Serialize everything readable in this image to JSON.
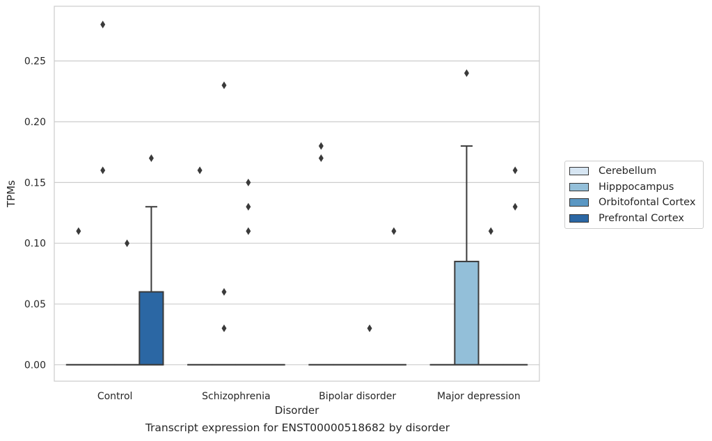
{
  "chart_data": {
    "type": "box",
    "categories": [
      "Control",
      "Schizophrenia",
      "Bipolar disorder",
      "Major depression"
    ],
    "xlabel": "Disorder",
    "ylabel": "TPMs",
    "caption": "Transcript expression for ENST00000518682 by disorder",
    "ylim": [
      -0.0135,
      0.295
    ],
    "yticks": [
      "0.00",
      "0.05",
      "0.10",
      "0.15",
      "0.20",
      "0.25"
    ],
    "grid": true,
    "legend_position": "right",
    "series": [
      {
        "name": "Cerebellum",
        "color": "#d6e5f2"
      },
      {
        "name": "Hipppocampus",
        "color": "#93bfd9"
      },
      {
        "name": "Orbitofontal Cortex",
        "color": "#5a97c3"
      },
      {
        "name": "Prefrontal Cortex",
        "color": "#2b67a4"
      }
    ],
    "boxes": [
      {
        "category": "Control",
        "series": "Cerebellum",
        "q1": 0,
        "median": 0,
        "q3": 0,
        "whisker_low": 0,
        "whisker_high": 0,
        "outliers": [
          0.11
        ]
      },
      {
        "category": "Control",
        "series": "Hipppocampus",
        "q1": 0,
        "median": 0,
        "q3": 0,
        "whisker_low": 0,
        "whisker_high": 0,
        "outliers": [
          0.28,
          0.16
        ]
      },
      {
        "category": "Control",
        "series": "Orbitofontal Cortex",
        "q1": 0,
        "median": 0,
        "q3": 0,
        "whisker_low": 0,
        "whisker_high": 0,
        "outliers": [
          0.1
        ]
      },
      {
        "category": "Control",
        "series": "Prefrontal Cortex",
        "q1": 0,
        "median": 0,
        "q3": 0.06,
        "whisker_low": 0,
        "whisker_high": 0.13,
        "outliers": [
          0.17
        ]
      },
      {
        "category": "Schizophrenia",
        "series": "Cerebellum",
        "q1": 0,
        "median": 0,
        "q3": 0,
        "whisker_low": 0,
        "whisker_high": 0,
        "outliers": [
          0.16
        ]
      },
      {
        "category": "Schizophrenia",
        "series": "Hipppocampus",
        "q1": 0,
        "median": 0,
        "q3": 0,
        "whisker_low": 0,
        "whisker_high": 0,
        "outliers": [
          0.23,
          0.06,
          0.03
        ]
      },
      {
        "category": "Schizophrenia",
        "series": "Orbitofontal Cortex",
        "q1": 0,
        "median": 0,
        "q3": 0,
        "whisker_low": 0,
        "whisker_high": 0,
        "outliers": [
          0.15,
          0.13,
          0.11
        ]
      },
      {
        "category": "Schizophrenia",
        "series": "Prefrontal Cortex",
        "q1": 0,
        "median": 0,
        "q3": 0,
        "whisker_low": 0,
        "whisker_high": 0,
        "outliers": []
      },
      {
        "category": "Bipolar disorder",
        "series": "Cerebellum",
        "q1": 0,
        "median": 0,
        "q3": 0,
        "whisker_low": 0,
        "whisker_high": 0,
        "outliers": [
          0.18,
          0.17
        ]
      },
      {
        "category": "Bipolar disorder",
        "series": "Hipppocampus",
        "q1": 0,
        "median": 0,
        "q3": 0,
        "whisker_low": 0,
        "whisker_high": 0,
        "outliers": []
      },
      {
        "category": "Bipolar disorder",
        "series": "Orbitofontal Cortex",
        "q1": 0,
        "median": 0,
        "q3": 0,
        "whisker_low": 0,
        "whisker_high": 0,
        "outliers": [
          0.03
        ]
      },
      {
        "category": "Bipolar disorder",
        "series": "Prefrontal Cortex",
        "q1": 0,
        "median": 0,
        "q3": 0,
        "whisker_low": 0,
        "whisker_high": 0,
        "outliers": [
          0.11
        ]
      },
      {
        "category": "Major depression",
        "series": "Cerebellum",
        "q1": 0,
        "median": 0,
        "q3": 0,
        "whisker_low": 0,
        "whisker_high": 0,
        "outliers": []
      },
      {
        "category": "Major depression",
        "series": "Hipppocampus",
        "q1": 0,
        "median": 0,
        "q3": 0.085,
        "whisker_low": 0,
        "whisker_high": 0.18,
        "outliers": [
          0.24
        ]
      },
      {
        "category": "Major depression",
        "series": "Orbitofontal Cortex",
        "q1": 0,
        "median": 0,
        "q3": 0,
        "whisker_low": 0,
        "whisker_high": 0,
        "outliers": [
          0.11
        ]
      },
      {
        "category": "Major depression",
        "series": "Prefrontal Cortex",
        "q1": 0,
        "median": 0,
        "q3": 0,
        "whisker_low": 0,
        "whisker_high": 0,
        "outliers": [
          0.16,
          0.13
        ]
      }
    ]
  }
}
